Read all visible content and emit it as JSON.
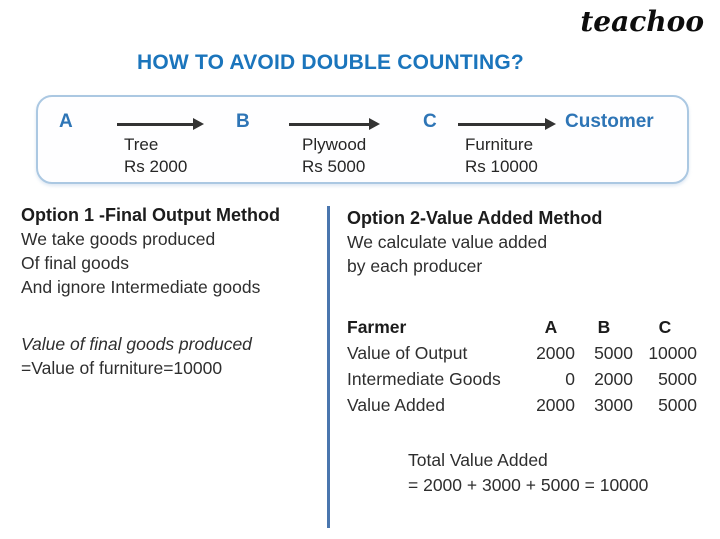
{
  "logo": "teachoo",
  "title": "HOW TO AVOID DOUBLE COUNTING?",
  "flow": {
    "nodes": {
      "a": "A",
      "b": "B",
      "c": "C",
      "customer": "Customer"
    },
    "edges": [
      {
        "label": "Tree",
        "value": "Rs 2000"
      },
      {
        "label": "Plywood",
        "value": "Rs 5000"
      },
      {
        "label": "Furniture",
        "value": "Rs 10000"
      }
    ]
  },
  "option1": {
    "heading": "Option 1 -Final Output Method",
    "lines": [
      "We take goods produced",
      "Of final goods",
      "And ignore Intermediate goods"
    ],
    "italic_line": "Value of final goods produced",
    "result_line": "=Value of furniture=10000"
  },
  "option2": {
    "heading": "Option 2-Value Added Method",
    "lines": [
      "We calculate value added",
      "by each producer"
    ],
    "table": {
      "row_label_header": "Farmer",
      "col_headers": [
        "A",
        "B",
        "C"
      ],
      "rows": [
        {
          "label": "Value of Output",
          "values": [
            "2000",
            "5000",
            "10000"
          ]
        },
        {
          "label": "Intermediate Goods",
          "values": [
            "0",
            "2000",
            "5000"
          ]
        },
        {
          "label": "Value Added",
          "values": [
            "2000",
            "3000",
            "5000"
          ]
        }
      ]
    },
    "total_line1": "Total Value Added",
    "total_line2": "= 2000 + 3000 + 5000 = 10000"
  },
  "colors": {
    "title_blue": "#1b75bc",
    "node_blue": "#2e75b6",
    "box_border": "#abc8e2",
    "divider_blue": "#4a76ae",
    "text_dark": "#2e2e2e"
  }
}
